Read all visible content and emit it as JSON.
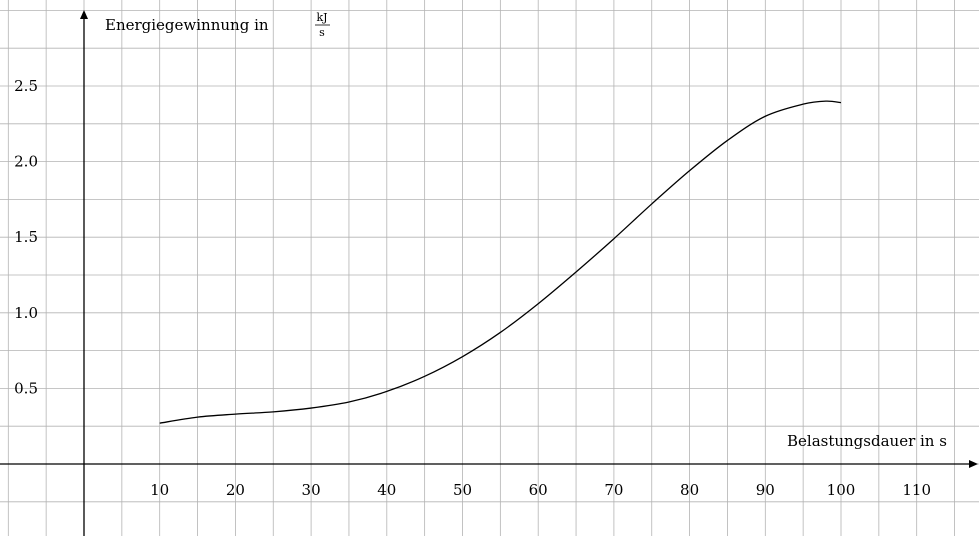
{
  "chart_data": {
    "type": "line",
    "ylabel_text": "Energiegewinnung in",
    "ylabel_unit_num": "kJ",
    "ylabel_unit_den": "s",
    "xlabel": "Belastungsdauer in s",
    "xlim": [
      -10,
      119
    ],
    "ylim": [
      -0.5,
      3.0
    ],
    "x_ticks": [
      10,
      20,
      30,
      40,
      50,
      60,
      70,
      80,
      90,
      100,
      110
    ],
    "x_tick_labels": [
      "10",
      "20",
      "30",
      "40",
      "50",
      "60",
      "70",
      "80",
      "90",
      "100",
      "110"
    ],
    "y_ticks": [
      0.5,
      1.0,
      1.5,
      2.0,
      2.5
    ],
    "y_tick_labels": [
      "0.5",
      "1.0",
      "1.5",
      "2.0",
      "2.5"
    ],
    "grid": true,
    "grid_step_x": 5,
    "grid_step_y": 0.25,
    "series": [
      {
        "x": [
          10,
          15,
          20,
          25,
          30,
          35,
          40,
          45,
          50,
          55,
          60,
          65,
          70,
          75,
          80,
          85,
          90,
          95,
          98,
          100
        ],
        "y": [
          0.27,
          0.31,
          0.33,
          0.345,
          0.37,
          0.41,
          0.48,
          0.58,
          0.71,
          0.87,
          1.06,
          1.27,
          1.49,
          1.72,
          1.94,
          2.14,
          2.3,
          2.38,
          2.4,
          2.39
        ]
      }
    ]
  }
}
